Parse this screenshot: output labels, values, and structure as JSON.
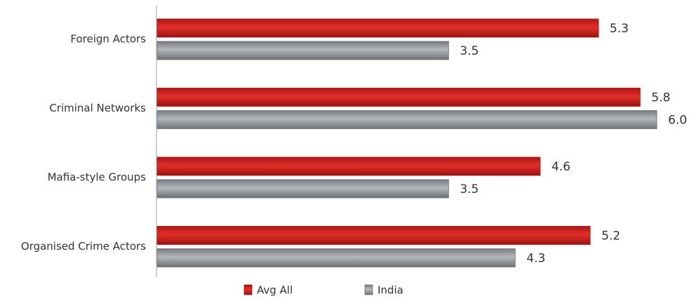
{
  "chart_data": {
    "type": "bar",
    "orientation": "horizontal",
    "categories": [
      "Foreign Actors",
      "Criminal Networks",
      "Mafia-style Groups",
      "Organised Crime Actors"
    ],
    "series": [
      {
        "name": "Avg All",
        "values": [
          5.3,
          5.8,
          4.6,
          5.2
        ]
      },
      {
        "name": "India",
        "values": [
          3.5,
          6.0,
          3.5,
          4.3
        ]
      }
    ],
    "value_labels": [
      [
        "5.3",
        "5.8",
        "4.6",
        "5.2"
      ],
      [
        "3.5",
        "6.0",
        "3.5",
        "4.3"
      ]
    ],
    "title": "",
    "xlabel": "",
    "ylabel": "",
    "xlim": [
      0,
      6.0
    ],
    "grid": false,
    "legend_position": "bottom",
    "colors": {
      "Avg All": "#c8201e",
      "India": "#8f9396"
    }
  }
}
